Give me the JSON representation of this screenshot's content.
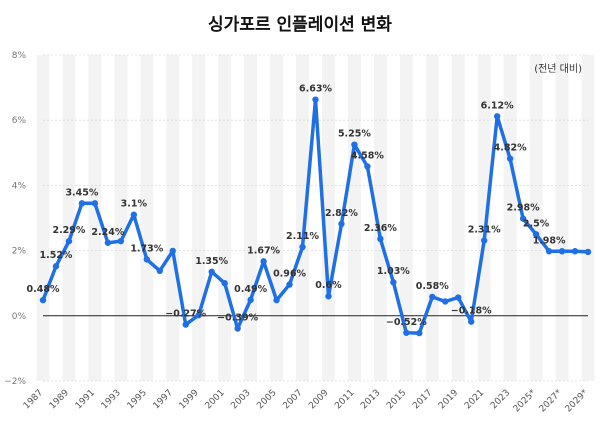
{
  "chart_data": {
    "type": "line",
    "title": "싱가포르 인플레이션 변화",
    "unit_note": "(전년 대비)",
    "ylim": [
      -2,
      8
    ],
    "yticks": [
      -2,
      0,
      2,
      4,
      6,
      8
    ],
    "ytick_labels": [
      "−2%",
      "0%",
      "2%",
      "4%",
      "6%",
      "8%"
    ],
    "grid": "alternating-column-bands",
    "line_color": "#1f6fe5",
    "x": [
      1987,
      1988,
      1989,
      1990,
      1991,
      1992,
      1993,
      1994,
      1995,
      1996,
      1997,
      1998,
      1999,
      2000,
      2001,
      2002,
      2003,
      2004,
      2005,
      2006,
      2007,
      2008,
      2009,
      2010,
      2011,
      2012,
      2013,
      2014,
      2015,
      2016,
      2017,
      2018,
      2019,
      2020,
      2021,
      2022,
      2023,
      2024,
      2025,
      2026,
      2027,
      2028,
      2029
    ],
    "values": [
      0.48,
      1.52,
      2.29,
      3.45,
      3.45,
      2.24,
      2.29,
      3.1,
      1.73,
      1.38,
      1.99,
      -0.27,
      0.02,
      1.35,
      1.0,
      -0.39,
      0.49,
      1.67,
      0.48,
      0.96,
      2.11,
      6.63,
      0.6,
      2.82,
      5.25,
      4.58,
      2.36,
      1.03,
      -0.52,
      -0.53,
      0.58,
      0.44,
      0.56,
      -0.18,
      2.31,
      6.12,
      4.82,
      2.98,
      2.5,
      1.98,
      1.98,
      1.98,
      1.96
    ],
    "xtick_labels": [
      {
        "year": 1987,
        "label": "1987"
      },
      {
        "year": 1989,
        "label": "1989"
      },
      {
        "year": 1991,
        "label": "1991"
      },
      {
        "year": 1993,
        "label": "1993"
      },
      {
        "year": 1995,
        "label": "1995"
      },
      {
        "year": 1997,
        "label": "1997"
      },
      {
        "year": 1999,
        "label": "1999"
      },
      {
        "year": 2001,
        "label": "2001"
      },
      {
        "year": 2003,
        "label": "2003"
      },
      {
        "year": 2005,
        "label": "2005"
      },
      {
        "year": 2007,
        "label": "2007"
      },
      {
        "year": 2009,
        "label": "2009"
      },
      {
        "year": 2011,
        "label": "2011"
      },
      {
        "year": 2013,
        "label": "2013"
      },
      {
        "year": 2015,
        "label": "2015"
      },
      {
        "year": 2017,
        "label": "2017"
      },
      {
        "year": 2019,
        "label": "2019"
      },
      {
        "year": 2021,
        "label": "2021"
      },
      {
        "year": 2023,
        "label": "2023"
      },
      {
        "year": 2025,
        "label": "2025*"
      },
      {
        "year": 2027,
        "label": "2027*"
      },
      {
        "year": 2029,
        "label": "2029*"
      }
    ],
    "data_labels": [
      {
        "year": 1987,
        "value": 0.48,
        "text": "0.48%"
      },
      {
        "year": 1988,
        "value": 1.52,
        "text": "1.52%"
      },
      {
        "year": 1989,
        "value": 2.29,
        "text": "2.29%"
      },
      {
        "year": 1990,
        "value": 3.45,
        "text": "3.45%"
      },
      {
        "year": 1992,
        "value": 2.24,
        "text": "2.24%"
      },
      {
        "year": 1994,
        "value": 3.1,
        "text": "3.1%"
      },
      {
        "year": 1995,
        "value": 1.73,
        "text": "1.73%"
      },
      {
        "year": 1998,
        "value": -0.27,
        "text": "−0.27%"
      },
      {
        "year": 2000,
        "value": 1.35,
        "text": "1.35%"
      },
      {
        "year": 2002,
        "value": -0.39,
        "text": "−0.39%"
      },
      {
        "year": 2003,
        "value": 0.49,
        "text": "0.49%"
      },
      {
        "year": 2004,
        "value": 1.67,
        "text": "1.67%"
      },
      {
        "year": 2006,
        "value": 0.96,
        "text": "0.96%"
      },
      {
        "year": 2007,
        "value": 2.11,
        "text": "2.11%"
      },
      {
        "year": 2008,
        "value": 6.63,
        "text": "6.63%"
      },
      {
        "year": 2009,
        "value": 0.6,
        "text": "0.6%"
      },
      {
        "year": 2010,
        "value": 2.82,
        "text": "2.82%"
      },
      {
        "year": 2011,
        "value": 5.25,
        "text": "5.25%"
      },
      {
        "year": 2012,
        "value": 4.58,
        "text": "4.58%"
      },
      {
        "year": 2013,
        "value": 2.36,
        "text": "2.36%"
      },
      {
        "year": 2014,
        "value": 1.03,
        "text": "1.03%"
      },
      {
        "year": 2015,
        "value": -0.52,
        "text": "−0.52%"
      },
      {
        "year": 2017,
        "value": 0.58,
        "text": "0.58%"
      },
      {
        "year": 2020,
        "value": -0.18,
        "text": "−0.18%"
      },
      {
        "year": 2021,
        "value": 2.31,
        "text": "2.31%"
      },
      {
        "year": 2022,
        "value": 6.12,
        "text": "6.12%"
      },
      {
        "year": 2023,
        "value": 4.82,
        "text": "4.82%"
      },
      {
        "year": 2024,
        "value": 2.98,
        "text": "2.98%"
      },
      {
        "year": 2025,
        "value": 2.5,
        "text": "2.5%"
      },
      {
        "year": 2026,
        "value": 1.98,
        "text": "1.98%"
      }
    ]
  }
}
